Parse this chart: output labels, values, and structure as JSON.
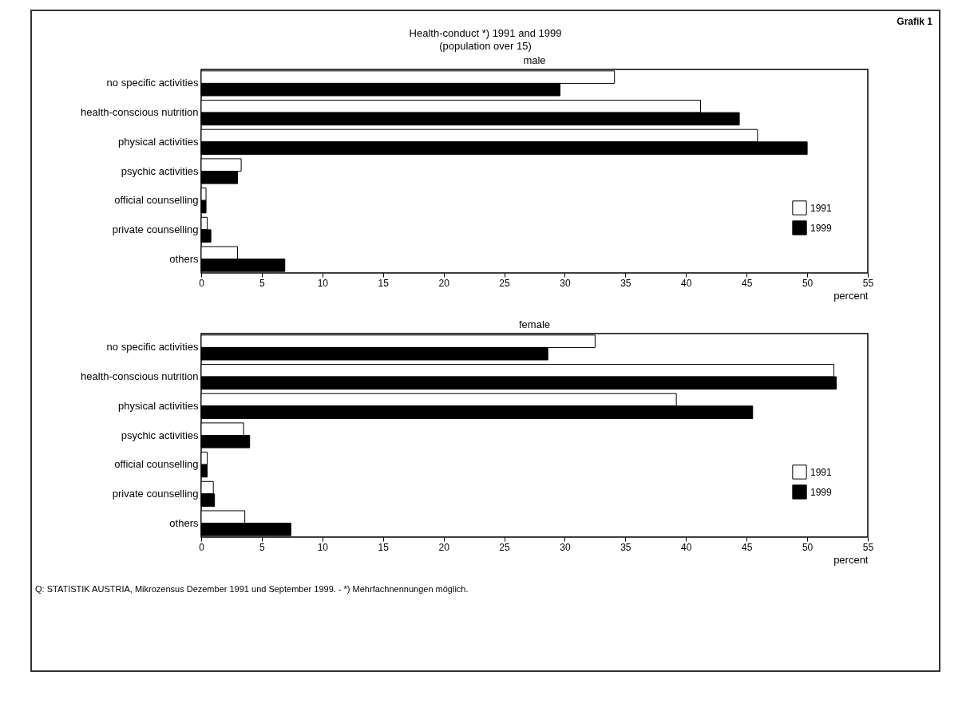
{
  "chart_data": [
    {
      "type": "bar",
      "orientation": "horizontal",
      "title": "male",
      "xlabel": "percent",
      "annotations": [
        "Grafik 1",
        "Health-conduct *) 1991 and 1999",
        "(population over 15)"
      ],
      "categories": [
        "no specific activities",
        "health-conscious nutrition",
        "physical activities",
        "psychic activities",
        "official counselling",
        "private counselling",
        "others"
      ],
      "series": [
        {
          "name": "1991",
          "color": "#ffffff",
          "values": [
            34.1,
            41.2,
            45.9,
            3.3,
            0.4,
            0.5,
            3.0
          ]
        },
        {
          "name": "1999",
          "color": "#000000",
          "values": [
            29.6,
            44.4,
            50.0,
            3.0,
            0.4,
            0.8,
            6.9
          ]
        }
      ],
      "xlim": [
        0,
        55
      ],
      "xticks": [
        0,
        5,
        10,
        15,
        20,
        25,
        30,
        35,
        40,
        45,
        50,
        55
      ],
      "grid": false,
      "legend": "bottom right"
    },
    {
      "type": "bar",
      "orientation": "horizontal",
      "title": "female",
      "xlabel": "percent",
      "annotations": [
        "Q: STATISTIK AUSTRIA, Mikrozensus Dezember 1991 und September 1999. - *) Mehrfachnennungen möglich."
      ],
      "categories": [
        "no specific activities",
        "health-conscious nutrition",
        "physical activities",
        "psychic activities",
        "official counselling",
        "private counselling",
        "others"
      ],
      "series": [
        {
          "name": "1991",
          "color": "#ffffff",
          "values": [
            32.5,
            52.2,
            39.2,
            3.5,
            0.5,
            1.0,
            3.6
          ]
        },
        {
          "name": "1999",
          "color": "#000000",
          "values": [
            28.6,
            52.4,
            45.5,
            4.0,
            0.5,
            1.1,
            7.4
          ]
        }
      ],
      "xlim": [
        0,
        55
      ],
      "xticks": [
        0,
        5,
        10,
        15,
        20,
        25,
        30,
        35,
        40,
        45,
        50,
        55
      ],
      "grid": false,
      "legend": "bottom right"
    }
  ]
}
